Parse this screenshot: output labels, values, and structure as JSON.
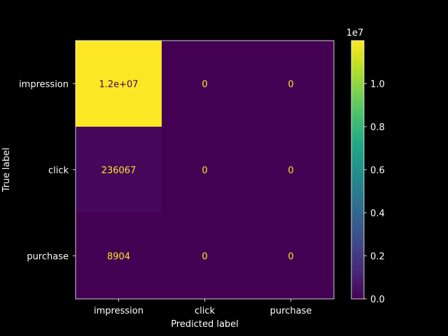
{
  "chart_data": {
    "type": "heatmap",
    "title": "",
    "xlabel": "Predicted label",
    "ylabel": "True label",
    "x_categories": [
      "impression",
      "click",
      "purchase"
    ],
    "y_categories": [
      "impression",
      "click",
      "purchase"
    ],
    "values": [
      [
        12000000,
        0,
        0
      ],
      [
        236067,
        0,
        0
      ],
      [
        8904,
        0,
        0
      ]
    ],
    "cell_labels": [
      [
        "1.2e+07",
        "0",
        "0"
      ],
      [
        "236067",
        "0",
        "0"
      ],
      [
        "8904",
        "0",
        "0"
      ]
    ],
    "colorbar": {
      "colormap": "viridis",
      "range": [
        0,
        12000000
      ],
      "ticks": [
        0,
        2000000,
        4000000,
        6000000,
        8000000,
        10000000
      ],
      "tick_labels": [
        "0.0",
        "0.2",
        "0.4",
        "0.6",
        "0.8",
        "1.0"
      ],
      "offset_label": "1e7"
    },
    "colors": {
      "background": "#000000",
      "high_text": "#440154",
      "low_text": "#fde725",
      "axis": "#ffffff"
    }
  }
}
